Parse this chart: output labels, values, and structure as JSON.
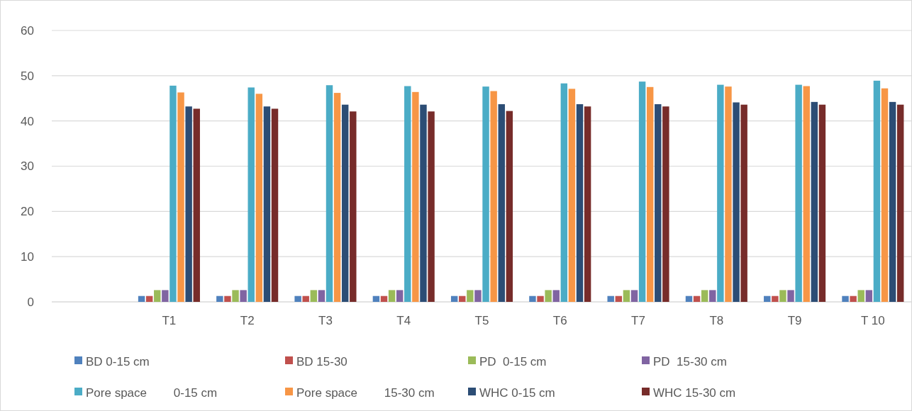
{
  "chart_data": {
    "type": "bar",
    "categories": [
      null,
      "T1",
      "T2",
      "T3",
      "T4",
      "T5",
      "T6",
      "T7",
      "T8",
      "T9",
      "T 10"
    ],
    "series": [
      {
        "name": "BD 0-15 cm",
        "color": "#4f81bd",
        "values": [
          null,
          1.3,
          1.3,
          1.3,
          1.3,
          1.3,
          1.3,
          1.3,
          1.3,
          1.3,
          1.3
        ]
      },
      {
        "name": "BD 15-30",
        "color": "#c0504d",
        "values": [
          null,
          1.3,
          1.3,
          1.3,
          1.3,
          1.3,
          1.3,
          1.3,
          1.3,
          1.3,
          1.3
        ]
      },
      {
        "name": "PD  0-15 cm",
        "color": "#9bbb59",
        "values": [
          null,
          2.6,
          2.6,
          2.6,
          2.6,
          2.6,
          2.6,
          2.6,
          2.6,
          2.6,
          2.6
        ]
      },
      {
        "name": "PD  15-30 cm",
        "color": "#8064a2",
        "values": [
          null,
          2.6,
          2.6,
          2.6,
          2.6,
          2.6,
          2.6,
          2.6,
          2.6,
          2.6,
          2.6
        ]
      },
      {
        "name": "Pore space        0-15 cm",
        "color": "#4bacc6",
        "values": [
          null,
          47.8,
          47.4,
          47.9,
          47.7,
          47.6,
          48.3,
          48.7,
          48.0,
          48.0,
          48.9
        ]
      },
      {
        "name": "Pore space        15-30 cm",
        "color": "#f79646",
        "values": [
          null,
          46.3,
          46.0,
          46.2,
          46.4,
          46.6,
          47.1,
          47.5,
          47.6,
          47.7,
          47.2
        ]
      },
      {
        "name": "WHC 0-15 cm",
        "color": "#2c4d75",
        "values": [
          null,
          43.2,
          43.2,
          43.6,
          43.6,
          43.7,
          43.7,
          43.7,
          44.1,
          44.2,
          44.2
        ]
      },
      {
        "name": "WHC 15-30 cm",
        "color": "#772c2a",
        "values": [
          null,
          42.7,
          42.7,
          42.1,
          42.1,
          42.2,
          43.2,
          43.2,
          43.6,
          43.6,
          43.6
        ]
      }
    ],
    "ylim": [
      0,
      60
    ],
    "yticks": [
      0,
      10,
      20,
      30,
      40,
      50,
      60
    ],
    "grid": "y",
    "legend": "bottom"
  }
}
